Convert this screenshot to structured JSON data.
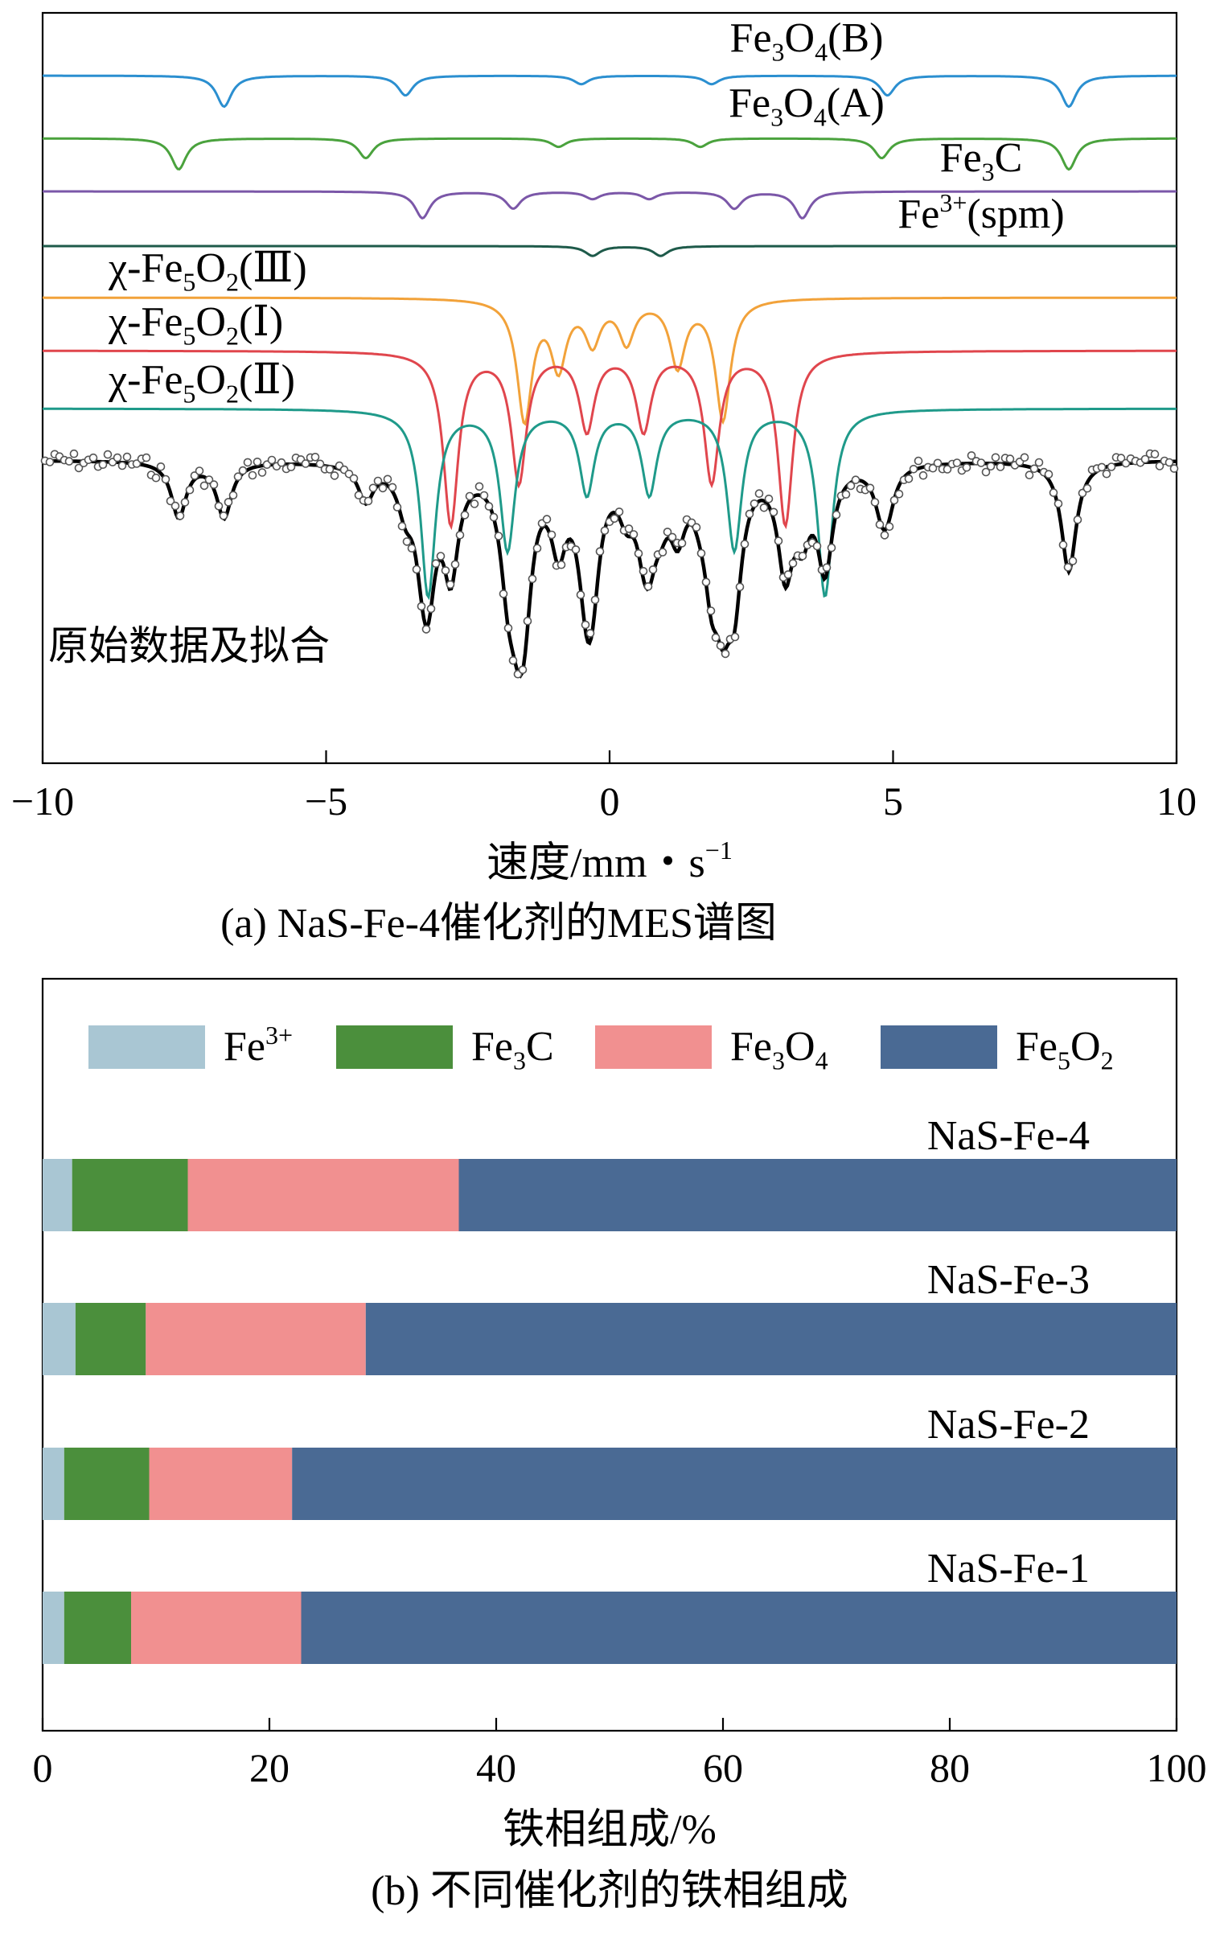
{
  "chart_data": [
    {
      "type": "line",
      "panel": "a",
      "title": "(a) NaS-Fe-4催化剂的MES谱图",
      "xlabel": "速度/mm・s",
      "xlabel_sup": "−1",
      "ylabel": "",
      "xlim": [
        -10,
        10
      ],
      "xticks": [
        -10,
        -5,
        0,
        5,
        10
      ],
      "xtick_labels": [
        "−10",
        "−5",
        "0",
        "5",
        "10"
      ],
      "fit_label": "原始数据及拟合",
      "components": [
        {
          "name": "Fe3O4(B)",
          "label_parts": [
            "Fe",
            "3",
            "O",
            "4",
            "(B)"
          ],
          "color": "#2b8fd0",
          "lines": [
            -6.8,
            -3.6,
            -0.5,
            1.8,
            4.9,
            8.1
          ],
          "depths": [
            0.55,
            0.35,
            0.15,
            0.15,
            0.35,
            0.55
          ]
        },
        {
          "name": "Fe3O4(A)",
          "label_parts": [
            "Fe",
            "3",
            "O",
            "4",
            "(A)"
          ],
          "color": "#4aa23d",
          "lines": [
            -7.6,
            -4.3,
            -0.9,
            1.6,
            4.8,
            8.1
          ],
          "depths": [
            0.55,
            0.35,
            0.15,
            0.15,
            0.35,
            0.55
          ]
        },
        {
          "name": "Fe3C",
          "label_parts": [
            "Fe",
            "3",
            "C"
          ],
          "color": "#7b57a8",
          "lines": [
            -3.3,
            -1.7,
            -0.3,
            0.7,
            2.2,
            3.4
          ],
          "depths": [
            0.55,
            0.35,
            0.15,
            0.15,
            0.35,
            0.55
          ]
        },
        {
          "name": "Fe3+(spm)",
          "label_parts": [
            "Fe",
            "3+",
            "(spm)"
          ],
          "color": "#1e5a4a",
          "lines": [
            -0.3,
            0.9
          ],
          "depths": [
            0.3,
            0.3
          ]
        },
        {
          "name": "χ-Fe5O2(Ⅲ)",
          "label_parts": [
            "χ-Fe",
            "5",
            "O",
            "2",
            "(Ⅲ)"
          ],
          "color": "#f2a23a",
          "lines": [
            -1.5,
            -0.9,
            -0.3,
            0.3,
            1.2,
            2.0
          ],
          "depths": [
            1.0,
            0.55,
            0.35,
            0.35,
            0.55,
            1.0
          ]
        },
        {
          "name": "χ-Fe5O2(Ⅰ)",
          "label_parts": [
            "χ-Fe",
            "5",
            "O",
            "2",
            "(Ⅰ)"
          ],
          "color": "#e0464d",
          "lines": [
            -2.8,
            -1.6,
            -0.4,
            0.6,
            1.8,
            3.1
          ],
          "depths": [
            1.0,
            0.75,
            0.45,
            0.45,
            0.75,
            1.0
          ]
        },
        {
          "name": "χ-Fe5O2(Ⅱ)",
          "label_parts": [
            "χ-Fe",
            "5",
            "O",
            "2",
            "(Ⅱ)"
          ],
          "color": "#1f9a8a",
          "lines": [
            -3.2,
            -1.8,
            -0.4,
            0.7,
            2.2,
            3.8
          ],
          "depths": [
            1.0,
            0.75,
            0.45,
            0.45,
            0.75,
            1.0
          ]
        }
      ],
      "fit_color": "#000000",
      "data_marker_color": "#555555"
    },
    {
      "type": "bar",
      "orientation": "horizontal",
      "stacked": true,
      "panel": "b",
      "title": "(b) 不同催化剂的铁相组成",
      "xlabel": "铁相组成/%",
      "ylabel": "",
      "xlim": [
        0,
        100
      ],
      "xticks": [
        0,
        20,
        40,
        60,
        80,
        100
      ],
      "xtick_labels": [
        "0",
        "20",
        "40",
        "60",
        "80",
        "100"
      ],
      "categories": [
        "NaS-Fe-4",
        "NaS-Fe-3",
        "NaS-Fe-2",
        "NaS-Fe-1"
      ],
      "legend_position": "top",
      "series": [
        {
          "name": "Fe3+",
          "label_parts": [
            "Fe",
            "3+"
          ],
          "color": "#a9c6d3",
          "values": [
            2.6,
            2.9,
            1.9,
            1.9
          ]
        },
        {
          "name": "Fe3C",
          "label_parts": [
            "Fe",
            "3",
            "C"
          ],
          "color": "#4b8f3c",
          "values": [
            10.2,
            6.2,
            7.5,
            5.9
          ]
        },
        {
          "name": "Fe3O4",
          "label_parts": [
            "Fe",
            "3",
            "O",
            "4"
          ],
          "color": "#f19090",
          "values": [
            23.9,
            19.4,
            12.6,
            15.0
          ]
        },
        {
          "name": "Fe5O2",
          "label_parts": [
            "Fe",
            "5",
            "O",
            "2"
          ],
          "color": "#4a6a94",
          "values": [
            63.3,
            71.5,
            78.0,
            77.2
          ]
        }
      ]
    }
  ]
}
